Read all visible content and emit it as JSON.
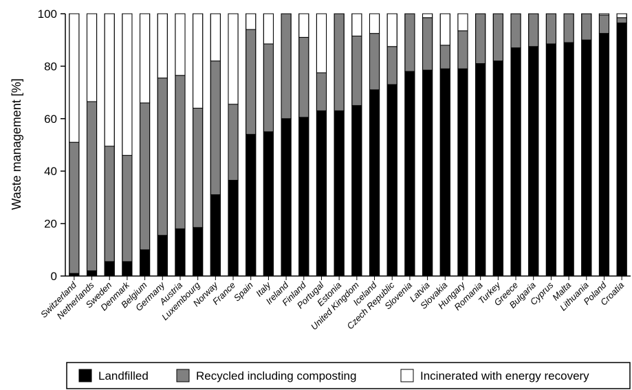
{
  "chart_data": {
    "type": "bar",
    "stacked": true,
    "ylabel": "Waste management [%]",
    "ylim": [
      0,
      100
    ],
    "yticks": [
      0,
      20,
      40,
      60,
      80,
      100
    ],
    "grid": false,
    "legend_position": "bottom-right",
    "categories": [
      "Switzerland",
      "Netherlands",
      "Sweden",
      "Denmark",
      "Belgium",
      "Germany",
      "Austria",
      "Luxembourg",
      "Norway",
      "France",
      "Spain",
      "Italy",
      "Ireland",
      "Finland",
      "Portugal",
      "Estonia",
      "United Kingdom",
      "Iceland",
      "Czech Republic",
      "Slovenia",
      "Latvia",
      "Slovakia",
      "Hungary",
      "Romania",
      "Turkey",
      "Greece",
      "Bulgaria",
      "Cyprus",
      "Malta",
      "Lithuania",
      "Poland",
      "Croatia"
    ],
    "series": [
      {
        "name": "Landfilled",
        "color": "#000000",
        "values": [
          1,
          2,
          5.5,
          5.5,
          10,
          15.5,
          18,
          18.5,
          31,
          36.5,
          54,
          55,
          60,
          60.5,
          63,
          63,
          65,
          71,
          73,
          78,
          78.5,
          79,
          79,
          81,
          82,
          87,
          87.5,
          88.5,
          89,
          90,
          92.5,
          96.5
        ]
      },
      {
        "name": "Recycled including composting",
        "color": "#808080",
        "values": [
          50,
          64.5,
          44,
          40.5,
          56,
          60,
          58.5,
          45.5,
          51,
          29,
          40,
          33.5,
          40,
          30.5,
          14.5,
          37,
          26.5,
          21.5,
          14.5,
          22,
          20,
          9,
          14.5,
          19,
          18,
          13,
          12.5,
          11.5,
          11,
          10,
          7,
          2
        ]
      },
      {
        "name": "Incinerated with energy recovery",
        "color": "#ffffff",
        "values": [
          49,
          33.5,
          50.5,
          54,
          34,
          24.5,
          23.5,
          36,
          18,
          34.5,
          6,
          11.5,
          0,
          9,
          22.5,
          0,
          8.5,
          7.5,
          12.5,
          0,
          1.5,
          12,
          6.5,
          0,
          0,
          0,
          0,
          0,
          0,
          0,
          0.5,
          1.5
        ]
      }
    ]
  }
}
